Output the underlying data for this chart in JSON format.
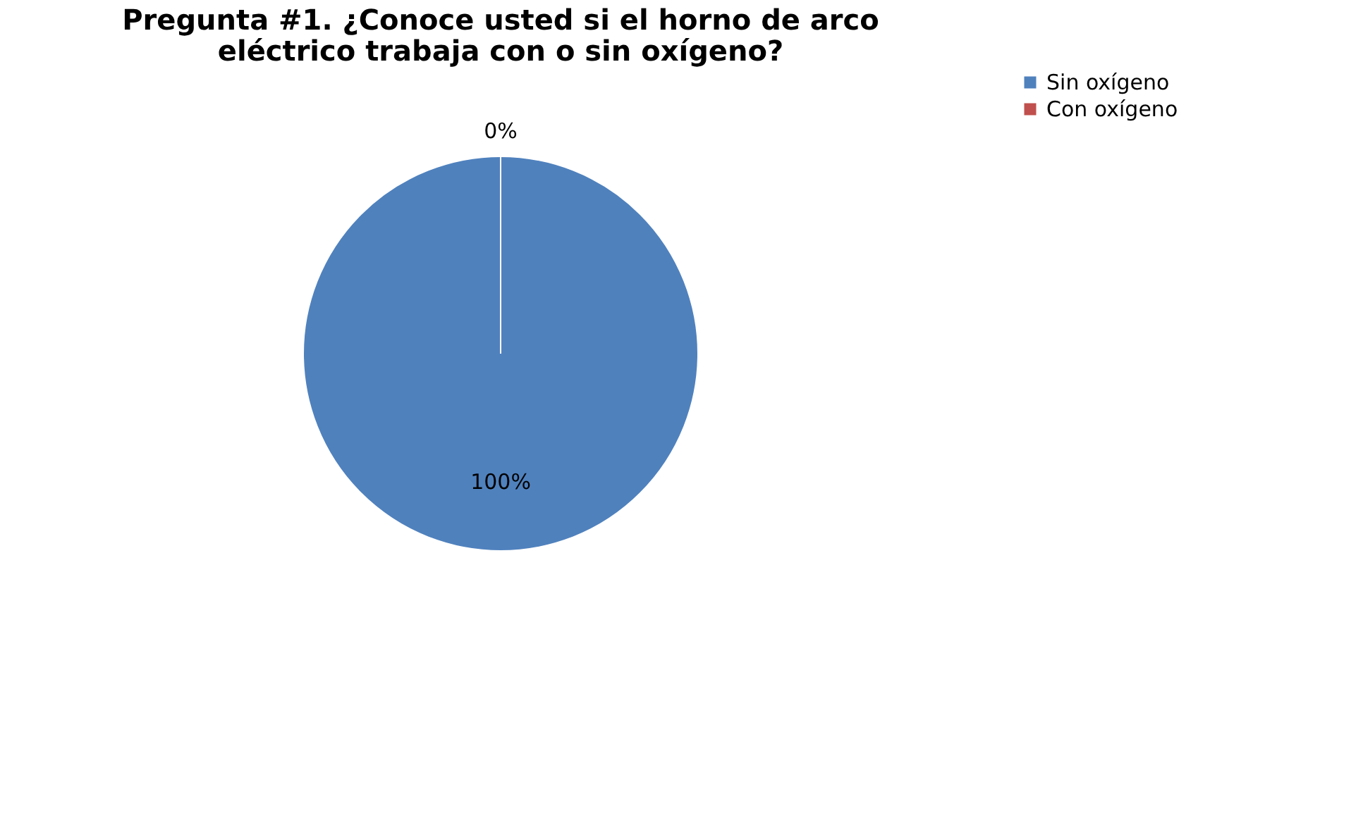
{
  "chart_data": {
    "type": "pie",
    "title": "Pregunta #1. ¿Conoce usted si el horno de arco\neléctrico trabaja con o sin oxígeno?",
    "categories": [
      "Sin oxígeno",
      "Con oxígeno"
    ],
    "values": [
      100,
      0
    ],
    "colors": [
      "#4f81bd",
      "#c0504d"
    ],
    "value_labels": [
      "100%",
      "0%"
    ],
    "legend": "right"
  }
}
